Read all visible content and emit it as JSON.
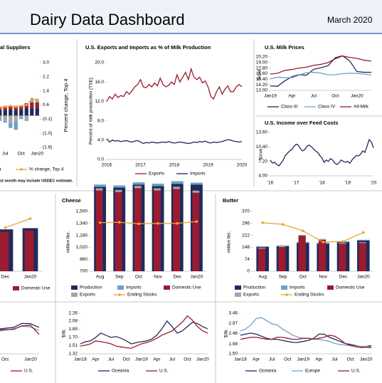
{
  "header": {
    "title": "Dairy Data Dashboard",
    "date": "March 2020"
  },
  "chart_data": [
    {
      "type": "bar",
      "title": "al Suppliers",
      "y2label": "Percent change, Top 4",
      "categories": [
        null,
        "Jul",
        null,
        null,
        "Oct",
        null,
        null,
        "Jan20"
      ],
      "series": [
        {
          "name": "a",
          "color": "#1f2a5c",
          "axis": "y2",
          "values": [
            0.3,
            0.3,
            0.35,
            0.3,
            0.35,
            0.4,
            0.4,
            0.45
          ]
        },
        {
          "color": "#9b1b30",
          "axis": "y2",
          "values": [
            0.2,
            0.25,
            0.2,
            0.25,
            0.2,
            0.3,
            0.35,
            0.3
          ]
        },
        {
          "color": "#a6a6a6",
          "axis": "y2",
          "values": [
            -0.2,
            -0.3,
            -0.4,
            -0.3,
            -0.1,
            -0.2,
            0.1,
            0.1
          ]
        },
        {
          "color": "#6fa0c8",
          "axis": "y2",
          "values": [
            -0.1,
            -0.1,
            -0.3,
            -0.5,
            -0.1,
            -0.1,
            0.05,
            0.05
          ]
        },
        {
          "name": "% change, Top 4",
          "color": "#e8a33a",
          "mark": "line",
          "axis": "y2",
          "values": [
            0.45,
            0.5,
            0.55,
            0.5,
            0.55,
            0.6,
            0.95,
            0.9
          ]
        }
      ],
      "y2lim": [
        -1.8,
        3.0
      ],
      "y2ticks": [
        {
          "value": 3.0,
          "label": "3.0"
        },
        2.2,
        1.4,
        0.6,
        {
          "value": -0.2,
          "label": "(0.2)"
        },
        {
          "value": -1.0,
          "label": "(1.0)"
        },
        {
          "value": -1.8,
          "label": "(1.8)"
        }
      ],
      "note": "st month may include USDEC estimate."
    },
    {
      "type": "line",
      "title": "U.S. Exports and Imports as % of Milk Production",
      "ylabel": "Percent of milk production (TSE)",
      "categories": [
        "2016",
        null,
        null,
        null,
        null,
        null,
        null,
        null,
        null,
        null,
        null,
        null,
        "2017",
        null,
        null,
        null,
        null,
        null,
        null,
        null,
        null,
        null,
        null,
        null,
        "2018",
        null,
        null,
        null,
        null,
        null,
        null,
        null,
        null,
        null,
        null,
        null,
        "2019",
        null,
        null,
        null,
        null,
        null,
        null,
        null,
        null,
        null,
        null,
        null,
        "2020"
      ],
      "series": [
        {
          "name": "Exports",
          "color": "#9b1b30",
          "values": [
            12.0,
            13.0,
            12.5,
            13.5,
            12.8,
            13.2,
            13.0,
            14.0,
            13.5,
            14.2,
            15.0,
            15.5,
            16.5,
            15.0,
            14.8,
            15.5,
            15.0,
            15.8,
            15.2,
            16.8,
            15.5,
            15.0,
            15.3,
            16.0,
            15.5,
            17.5,
            16.0,
            17.0,
            18.0,
            16.5,
            18.7,
            17.0,
            16.5,
            17.0,
            15.8,
            16.2,
            15.0,
            13.0,
            12.5,
            14.0,
            15.0,
            13.5,
            14.5,
            15.2,
            14.0,
            14.0,
            15.0,
            15.5,
            15.0
          ]
        },
        {
          "name": "Imports",
          "color": "#1f2a5c",
          "values": [
            4.3,
            3.6,
            4.0,
            3.8,
            3.9,
            3.7,
            3.8,
            3.9,
            3.7,
            3.6,
            3.8,
            3.9,
            3.6,
            3.3,
            3.5,
            3.4,
            3.6,
            3.5,
            3.4,
            3.5,
            3.6,
            3.5,
            3.7,
            3.5,
            3.4,
            3.5,
            3.6,
            3.5,
            3.4,
            3.3,
            3.4,
            3.6,
            3.5,
            3.7,
            3.6,
            3.8,
            3.5,
            3.4,
            3.6,
            3.5,
            3.6,
            3.7,
            3.9,
            4.1,
            4.0,
            3.8,
            3.7,
            3.6,
            3.7
          ]
        }
      ],
      "ylim": [
        0,
        20
      ],
      "yticks": [
        {
          "value": 0,
          "label": "0.0"
        },
        {
          "value": 4,
          "label": "4.0"
        },
        {
          "value": 8,
          "label": "8.0"
        },
        {
          "value": 12,
          "label": "12.0"
        },
        {
          "value": 16,
          "label": "16.0"
        },
        {
          "value": 20,
          "label": "20.0"
        }
      ]
    },
    {
      "type": "line",
      "title": "U.S. Milk Prices",
      "ylabel": "$/cwt.",
      "categories": [
        "Jan19",
        null,
        null,
        "Apr",
        null,
        null,
        "Jul",
        null,
        null,
        "Oct",
        null,
        null,
        "Jan20",
        null,
        null
      ],
      "series": [
        {
          "name": "Class III",
          "color": "#1f2a5c",
          "values": [
            13.96,
            13.89,
            15.04,
            15.96,
            16.38,
            16.27,
            17.55,
            17.89,
            18.31,
            20.04,
            20.45,
            19.37,
            17.05,
            16.9,
            16.9
          ]
        },
        {
          "name": "Class IV",
          "color": "#6fa0c8",
          "values": [
            15.48,
            15.86,
            15.71,
            15.72,
            16.29,
            16.83,
            16.9,
            16.74,
            16.35,
            16.39,
            16.6,
            16.7,
            16.65,
            16.5,
            16.3
          ]
        },
        {
          "name": "All-Milk",
          "color": "#9b1b30",
          "values": [
            16.5,
            16.7,
            17.3,
            17.5,
            17.8,
            18.0,
            18.4,
            18.6,
            19.0,
            19.8,
            20.4,
            20.1,
            19.9,
            19.5,
            19.3
          ]
        }
      ],
      "ylim": [
        13,
        20.2
      ],
      "yticks": [
        {
          "value": 13,
          "label": "13.00"
        },
        {
          "value": 14.2,
          "label": "14.20"
        },
        {
          "value": 15.4,
          "label": "15.40"
        },
        {
          "value": 16.6,
          "label": "16.60"
        },
        {
          "value": 17.8,
          "label": "17.80"
        },
        {
          "value": 19,
          "label": "19.00"
        },
        {
          "value": 20.2,
          "label": "20.20"
        }
      ]
    },
    {
      "type": "line",
      "title": "U.S. Income over Feed Costs",
      "ylabel": "$/cwt.",
      "categories": [
        "'16",
        null,
        null,
        null,
        null,
        null,
        null,
        null,
        null,
        null,
        null,
        null,
        "'17",
        null,
        null,
        null,
        null,
        null,
        null,
        null,
        null,
        null,
        null,
        null,
        "'18",
        null,
        null,
        null,
        null,
        null,
        null,
        null,
        null,
        null,
        null,
        null,
        "'19",
        null,
        null,
        null,
        null,
        null,
        null,
        null,
        null,
        null,
        null,
        null,
        "'20"
      ],
      "series": [
        {
          "color": "#1f2a5c",
          "values": [
            7.5,
            6.8,
            7.0,
            6.5,
            6.2,
            6.8,
            7.5,
            8.5,
            9.0,
            9.5,
            9.8,
            10.5,
            11.0,
            10.8,
            10.0,
            9.5,
            9.8,
            10.5,
            10.8,
            10.5,
            10.0,
            9.5,
            9.2,
            8.5,
            8.0,
            7.0,
            7.5,
            7.2,
            7.8,
            7.5,
            6.8,
            6.5,
            6.9,
            7.5,
            7.2,
            7.0,
            7.2,
            6.8,
            7.5,
            8.0,
            8.5,
            8.4,
            8.8,
            9.5,
            9.2,
            10.5,
            12.0,
            11.5,
            10.2
          ]
        }
      ],
      "ylim": [
        4,
        13.6
      ],
      "yticks": [
        {
          "value": 4,
          "label": "4.00"
        },
        {
          "value": 7.2,
          "label": "7.20"
        },
        {
          "value": 10.4,
          "label": "10.40"
        },
        {
          "value": 13.6,
          "label": "13.60"
        }
      ]
    },
    {
      "type": "bar",
      "categories": [
        "Dec",
        "Jan20"
      ],
      "series": [
        {
          "color": "#1f2a5c",
          "stack": 0,
          "values": [
            70,
            72
          ]
        },
        {
          "name": "Domestic Use",
          "color": "#9b1b30",
          "stack": 1,
          "values": [
            66,
            68
          ]
        },
        {
          "color": "#e8a33a",
          "mark": "line",
          "values": [
            73,
            88
          ]
        }
      ],
      "ylim": [
        0,
        100
      ]
    },
    {
      "type": "bar",
      "title": "Cheese",
      "ylabel": "million lbs.",
      "categories": [
        "Aug",
        "Sep",
        "Oct",
        "Nov",
        "Dec",
        "Jan20"
      ],
      "series": [
        {
          "name": "Production",
          "color": "#1f2a5c",
          "stack": 0,
          "values": [
            1130,
            1120,
            1160,
            1140,
            1170,
            1160
          ]
        },
        {
          "name": "Imports",
          "color": "#6fa0c8",
          "stack": 0,
          "values": [
            30,
            28,
            30,
            32,
            35,
            25
          ]
        },
        {
          "name": "Domestic Use",
          "color": "#9b1b30",
          "stack": 1,
          "values": [
            1080,
            1060,
            1110,
            1080,
            1100,
            1050
          ]
        },
        {
          "name": "Exports",
          "color": "#a6a6a6",
          "stack": 1,
          "values": [
            30,
            28,
            32,
            30,
            30,
            28
          ]
        },
        {
          "name": "Ending Stocks",
          "color": "#e8a33a",
          "mark": "line",
          "values": [
            1350,
            1355,
            1335,
            1340,
            1340,
            1365
          ]
        }
      ],
      "ylim": [
        700,
        1500
      ],
      "yticks": [
        700,
        860,
        {
          "value": 1020,
          "label": "1,020"
        },
        {
          "value": 1180,
          "label": "1,180"
        },
        {
          "value": 1340,
          "label": "1,340"
        },
        {
          "value": 1500,
          "label": "1,500"
        }
      ]
    },
    {
      "type": "bar",
      "title": "Butter",
      "ylabel": "million lbs.",
      "categories": [
        "Aug",
        "Sep",
        "Oct",
        "Nov",
        "Dec",
        "Jan20"
      ],
      "series": [
        {
          "name": "Production",
          "color": "#1f2a5c",
          "stack": 0,
          "values": [
            150,
            155,
            175,
            170,
            180,
            190
          ]
        },
        {
          "name": "Imports",
          "color": "#6fa0c8",
          "stack": 0,
          "values": [
            5,
            5,
            6,
            6,
            5,
            5
          ]
        },
        {
          "name": "Domestic Use",
          "color": "#9b1b30",
          "stack": 1,
          "values": [
            140,
            150,
            220,
            195,
            170,
            175
          ]
        },
        {
          "name": "Exports",
          "color": "#a6a6a6",
          "stack": 1,
          "values": [
            6,
            6,
            5,
            5,
            6,
            5
          ]
        },
        {
          "name": "Ending Stocks",
          "color": "#e8a33a",
          "mark": "line",
          "values": [
            300,
            290,
            250,
            180,
            185,
            240
          ]
        }
      ],
      "ylim": [
        0,
        370
      ],
      "yticks": [
        0,
        74,
        148,
        222,
        296,
        370
      ]
    },
    {
      "type": "line",
      "categories": [
        null,
        "Oct",
        null,
        null,
        "Jan20",
        null
      ],
      "series": [
        {
          "color": "#1f2a5c",
          "values": [
            6.0,
            6.3,
            6.5,
            7.5,
            7.4,
            6.5
          ]
        },
        {
          "color": "#6fa0c8",
          "values": [
            5.5,
            5.8,
            6.2,
            6.8,
            6.6,
            5.8
          ]
        },
        {
          "name": "U.S.",
          "color": "#9b1b30",
          "values": [
            5.8,
            6.0,
            6.0,
            6.9,
            7.0,
            4.8
          ]
        }
      ],
      "ylim": [
        0,
        10
      ]
    },
    {
      "type": "line",
      "ylabel": "$/lb.",
      "categories": [
        "Jan18",
        null,
        null,
        "Apr",
        null,
        null,
        "Jul",
        null,
        null,
        "Oct",
        null,
        null,
        "Jan19",
        null,
        null,
        "Apr",
        null,
        null,
        "Jul",
        null,
        null,
        "Oct",
        null,
        null,
        "Jan20",
        null
      ],
      "series": [
        {
          "name": "Oceania",
          "color": "#1f2a5c",
          "values": [
            1.55,
            1.6,
            1.62,
            1.7,
            1.8,
            1.75,
            1.7,
            1.72,
            1.68,
            1.62,
            1.55,
            1.58,
            1.6,
            1.62,
            1.66,
            1.75,
            1.9,
            2.08,
            1.95,
            1.8,
            1.85,
            1.95,
            2.05,
            2.02,
            1.95,
            1.9
          ]
        },
        {
          "name": "U.S.",
          "color": "#9b1b30",
          "values": [
            1.5,
            1.52,
            1.55,
            1.62,
            1.6,
            1.58,
            1.55,
            1.5,
            1.48,
            1.46,
            1.45,
            1.5,
            1.55,
            1.58,
            1.62,
            1.68,
            1.75,
            1.8,
            1.85,
            1.95,
            2.05,
            2.2,
            2.1,
            1.95,
            1.85,
            1.8
          ]
        }
      ],
      "ylim": [
        1.32,
        2.26
      ],
      "yticks": [
        1.32,
        1.51,
        {
          "value": 1.7,
          "label": "1.70"
        },
        1.89,
        2.08,
        2.26
      ]
    },
    {
      "type": "line",
      "ylabel": "$/lb.",
      "categories": [
        "Jan18",
        null,
        null,
        "Apr",
        null,
        null,
        "Jul",
        null,
        null,
        "Oct",
        null,
        null,
        "Jan19",
        null,
        null,
        "Apr",
        null,
        null,
        "Jul",
        null,
        null,
        "Oct",
        null,
        null,
        "Jan20",
        null
      ],
      "series": [
        {
          "name": "Oceania",
          "color": "#1f2a5c",
          "values": [
            2.4,
            2.45,
            2.5,
            2.45,
            2.35,
            2.25,
            2.2,
            2.2,
            2.15,
            2.1,
            2.05,
            2.05,
            2.1,
            2.15,
            2.25,
            2.45,
            2.45,
            2.3,
            2.2,
            2.1,
            2.0,
            1.95,
            1.9,
            1.85,
            1.85,
            1.9
          ]
        },
        {
          "name": "Europe",
          "color": "#6fa0c8",
          "values": [
            2.6,
            2.7,
            2.9,
            3.2,
            3.25,
            3.1,
            2.95,
            2.9,
            2.7,
            2.55,
            2.4,
            2.3,
            2.25,
            2.25,
            2.2,
            2.2,
            2.15,
            2.1,
            2.0,
            1.95,
            1.92,
            1.9,
            1.88,
            1.86,
            1.85,
            1.84
          ]
        },
        {
          "name": "U.S.",
          "color": "#9b1b30",
          "values": [
            2.2,
            2.25,
            2.3,
            2.3,
            2.25,
            2.2,
            2.2,
            2.3,
            2.3,
            2.25,
            2.2,
            2.2,
            2.25,
            2.25,
            2.2,
            2.25,
            2.3,
            2.4,
            2.35,
            2.2,
            2.0,
            1.9,
            1.85,
            1.8,
            1.82,
            1.8
          ]
        }
      ],
      "ylim": [
        1.5,
        3.46
      ],
      "yticks": [
        {
          "value": 1.5,
          "label": "1.50"
        },
        1.98,
        2.48,
        2.97,
        3.46
      ]
    }
  ]
}
